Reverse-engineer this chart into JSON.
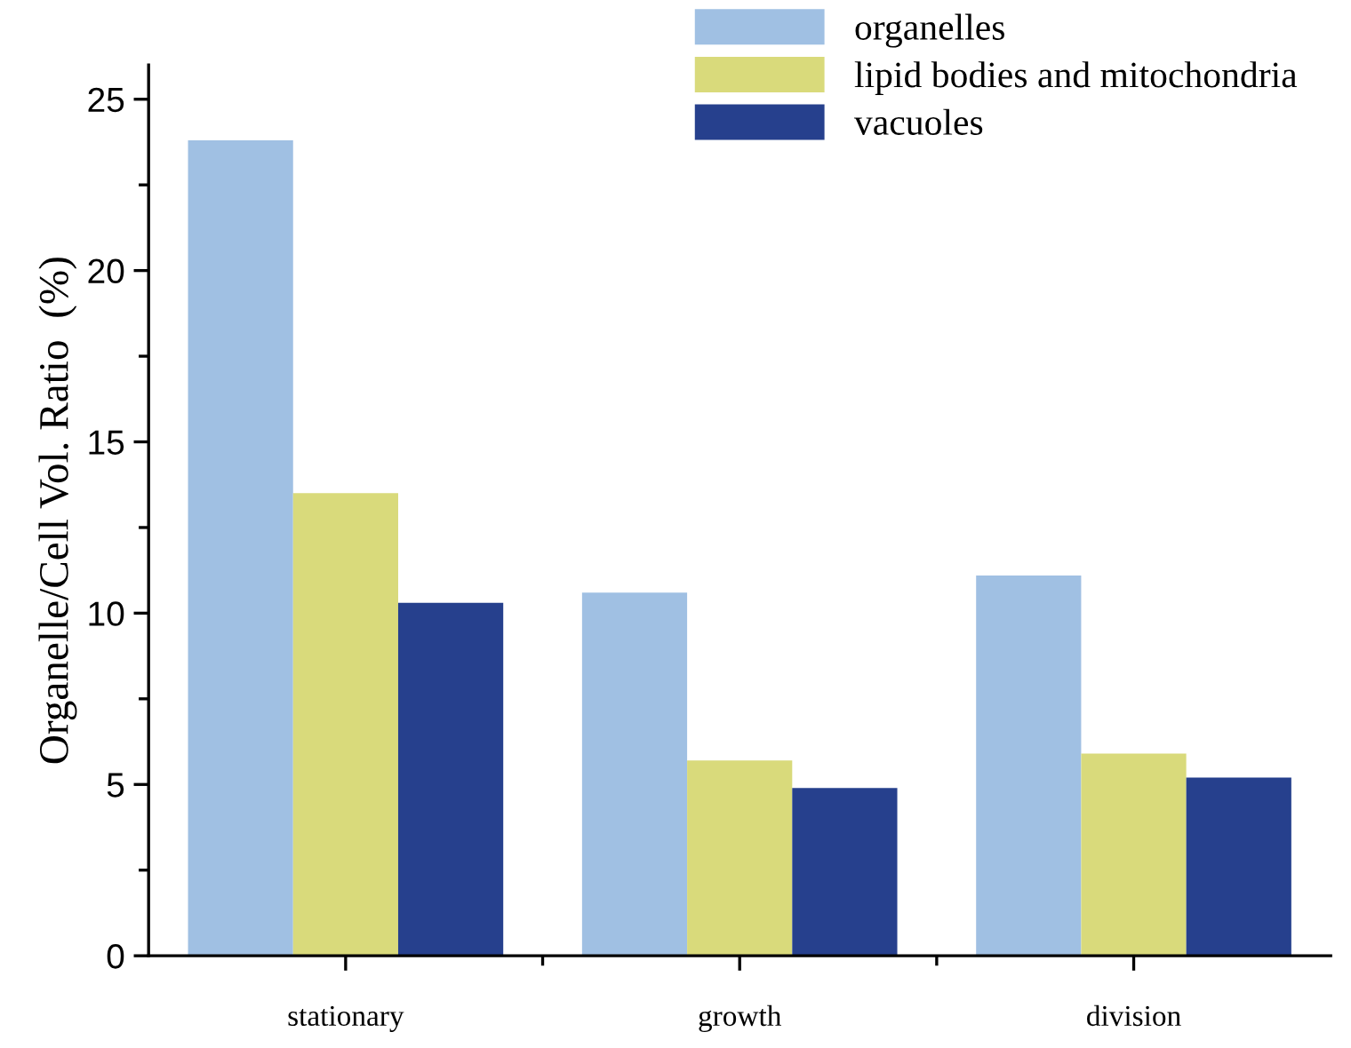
{
  "chart_data": {
    "type": "bar",
    "ylabel": "Organelle/Cell Vol. Ratio  (%)",
    "categories": [
      "stationary",
      "growth",
      "division"
    ],
    "series": [
      {
        "name": "organelles",
        "color": "#a0c0e3",
        "values": [
          23.8,
          10.6,
          11.1
        ]
      },
      {
        "name": "lipid bodies and mitochondria",
        "color": "#d9da7b",
        "values": [
          13.5,
          5.7,
          5.9
        ]
      },
      {
        "name": "vacuoles",
        "color": "#26408d",
        "values": [
          10.3,
          4.9,
          5.2
        ]
      }
    ],
    "ylim": [
      0,
      26
    ],
    "yticks": [
      0,
      {
        "value": 2.5,
        "label": null
      },
      5,
      {
        "value": 7.5,
        "label": null
      },
      10,
      {
        "value": 12.5,
        "label": null
      },
      15,
      {
        "value": 17.5,
        "label": null
      },
      20,
      {
        "value": 22.5,
        "label": null
      },
      25
    ],
    "grid": false,
    "legend": "top right"
  }
}
